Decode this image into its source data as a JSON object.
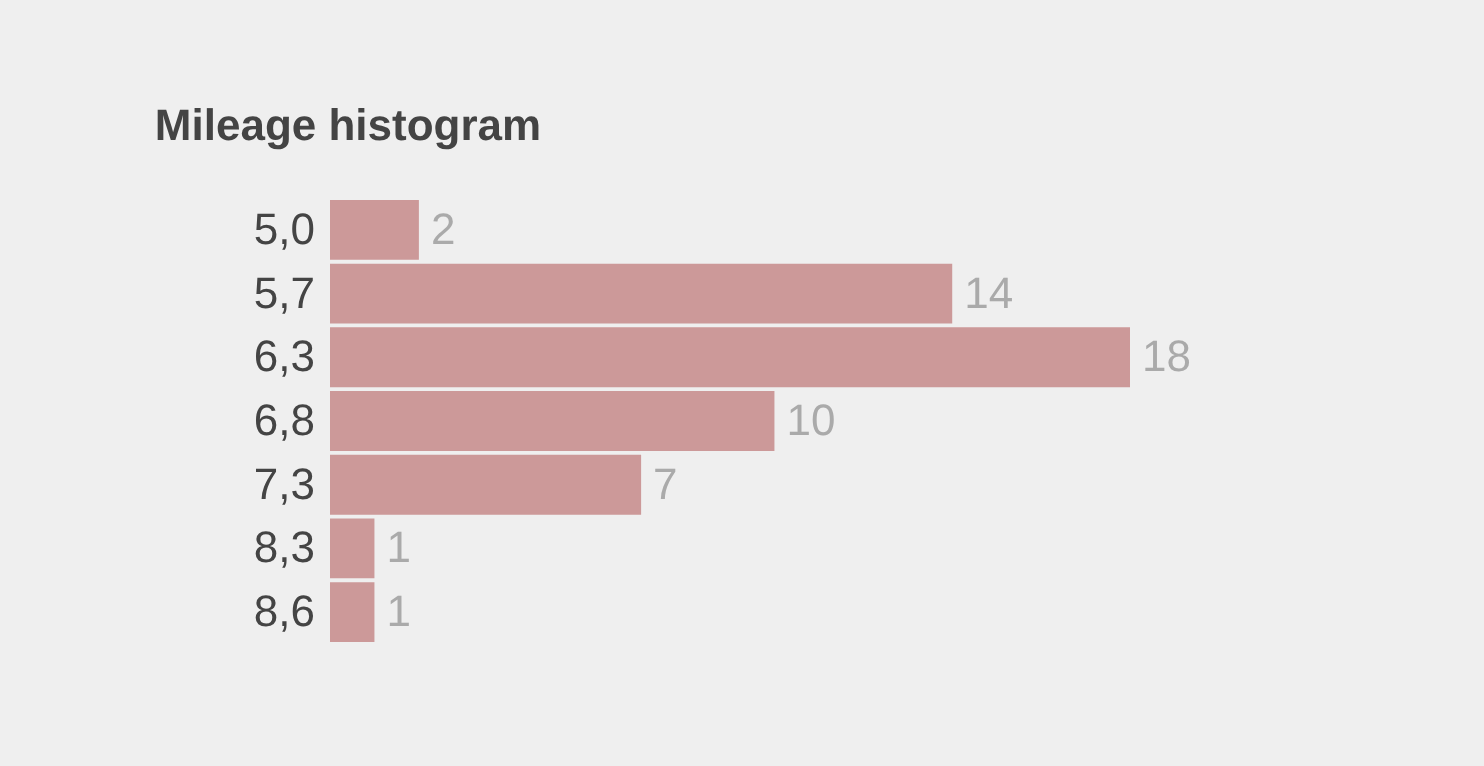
{
  "chart_data": {
    "type": "bar",
    "orientation": "horizontal",
    "title": "Mileage histogram",
    "categories": [
      "5,0",
      "5,7",
      "6,3",
      "6,8",
      "7,3",
      "8,3",
      "8,6"
    ],
    "values": [
      2,
      14,
      18,
      10,
      7,
      1,
      1
    ],
    "color": "#cc9999",
    "data_labels": true
  }
}
